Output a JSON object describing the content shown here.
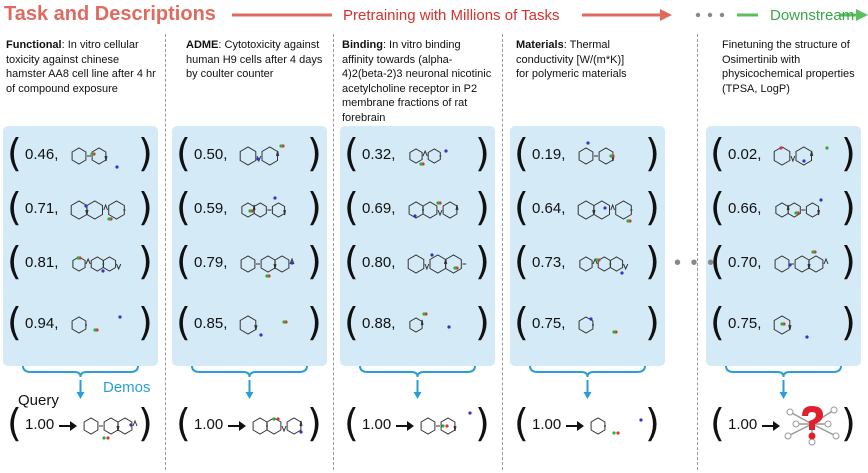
{
  "header": {
    "title": "Task and Descriptions",
    "pretraining": "Pretraining with Millions of Tasks",
    "downstream": "Downstream",
    "colors": {
      "title": "#e06a5f",
      "pretraining": "#d9302a",
      "downstream": "#3aa84a",
      "panel": "#d4ebf7",
      "accent": "#2a9fd6"
    }
  },
  "tasks": [
    {
      "label": "Functional",
      "description": ": In vitro cellular toxicity against chinese hamster AA8 cell line after 4 hr of compound exposure",
      "values": [
        "0.46,",
        "0.71,",
        "0.81,",
        "0.94,"
      ],
      "query": "1.00"
    },
    {
      "label": "ADME",
      "description": ": Cytotoxicity against human H9 cells after 4 days by coulter counter",
      "values": [
        "0.50,",
        "0.59,",
        "0.79,",
        "0.85,"
      ],
      "query": "1.00"
    },
    {
      "label": "Binding",
      "description": ": In vitro binding affinity towards (alpha-4)2(beta-2)3 neuronal nicotinic acetylcholine receptor in P2 membrane fractions of rat forebrain",
      "values": [
        "0.32,",
        "0.69,",
        "0.80,",
        "0.88,"
      ],
      "query": "1.00"
    },
    {
      "label": "Materials",
      "description": ": Thermal conductivity [W/(m*K)] for polymeric materials",
      "values": [
        "0.19,",
        "0.64,",
        "0.73,",
        "0.75,"
      ],
      "query": "1.00"
    },
    {
      "label": "",
      "description": "Finetuning the structure of Osimertinib with physicochemical properties (TPSA, LogP)",
      "values": [
        "0.02,",
        "0.66,",
        "0.70,",
        "0.75,"
      ],
      "query": "1.00"
    }
  ],
  "labels": {
    "query": "Query",
    "demos": "Demos",
    "ellipsis_top": "• • •",
    "ellipsis_mid": "• • •"
  }
}
